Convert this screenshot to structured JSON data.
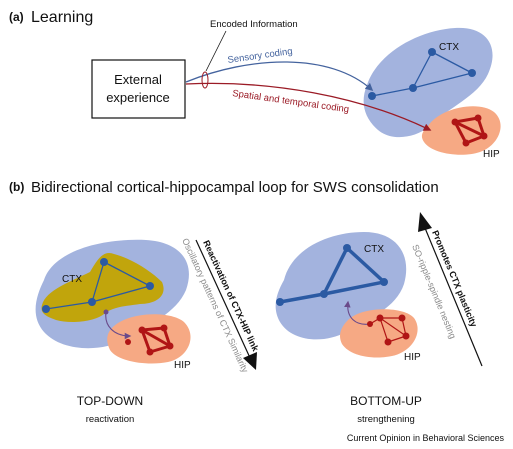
{
  "panel_a": {
    "label": "(a)",
    "title": "Learning",
    "external_line1": "External",
    "external_line2": "experience",
    "encoded": "Encoded Information",
    "sensory": "Sensory coding",
    "spatial": "Spatial and temporal coding",
    "ctx": "CTX",
    "hip": "HIP"
  },
  "panel_b": {
    "label": "(b)",
    "title": "Bidirectional cortical-hippocampal loop for SWS consolidation",
    "left": {
      "ctx": "CTX",
      "hip": "HIP",
      "arrow_label": "Reactivation of CTX-HIP link",
      "gray_label": "Oscillatory patterns of CTX Similarity",
      "heading": "TOP-DOWN",
      "sub": "reactivation"
    },
    "right": {
      "ctx": "CTX",
      "hip": "HIP",
      "arrow_label": "Promotes CTX plasticity",
      "gray_label": "SO-ripple-spindle nesting",
      "heading": "BOTTOM-UP",
      "sub": "strengthening"
    }
  },
  "credit": "Current Opinion in Behavioral Sciences",
  "colors": {
    "ctx_blue": "#a3b3de",
    "hip_orange": "#f6a984",
    "node_blue": "#2b5aa3",
    "node_red": "#b01515",
    "olive": "#c3a400",
    "sensory_arrow": "#44639e",
    "spatial_arrow": "#9b1b26"
  }
}
